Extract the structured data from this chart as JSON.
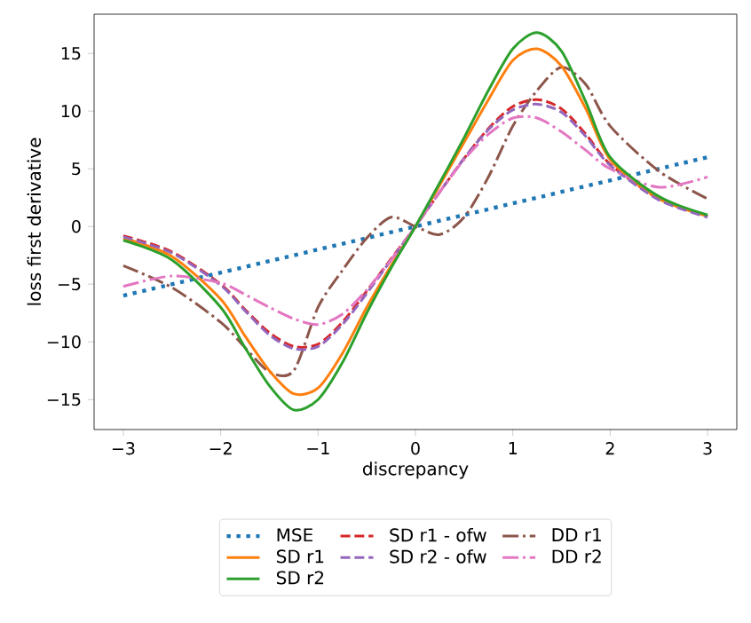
{
  "chart_data": {
    "type": "line",
    "xlabel": "discrepancy",
    "ylabel": "loss first derivative",
    "xlim": [
      -3.3,
      3.3
    ],
    "ylim": [
      -17.6,
      18.4
    ],
    "xticks": [
      {
        "value": -3,
        "label": "−3"
      },
      {
        "value": -2,
        "label": "−2"
      },
      {
        "value": -1,
        "label": "−1"
      },
      0,
      1,
      2,
      3
    ],
    "yticks": [
      {
        "value": -15,
        "label": "−15"
      },
      {
        "value": -10,
        "label": "−10"
      },
      {
        "value": -5,
        "label": "−5"
      },
      0,
      5,
      10,
      15
    ],
    "legend": "bottom",
    "grid": false,
    "x": [
      -3,
      -2.5,
      -2,
      -1.75,
      -1.5,
      -1.25,
      -1,
      -0.75,
      -0.5,
      -0.25,
      0,
      0.25,
      0.5,
      0.75,
      1,
      1.25,
      1.5,
      1.75,
      2,
      2.5,
      3
    ],
    "series": [
      {
        "name": "MSE",
        "color": "#1f77b4",
        "line_style": "dotted",
        "x": [
          -3,
          3
        ],
        "values": [
          -6,
          6
        ]
      },
      {
        "name": "SD r1",
        "color": "#ff7f0e",
        "line_style": "solid",
        "values": [
          -1.0,
          -2.6,
          -6.3,
          -9.5,
          -12.5,
          -14.5,
          -14.0,
          -11.0,
          -7.0,
          -3.4,
          0,
          3.6,
          7.3,
          11.0,
          14.4,
          15.4,
          13.9,
          10.2,
          5.8,
          2.4,
          0.9
        ]
      },
      {
        "name": "SD r2",
        "color": "#2ca02c",
        "line_style": "solid",
        "values": [
          -1.2,
          -2.9,
          -7.0,
          -10.5,
          -13.8,
          -15.9,
          -15.0,
          -11.8,
          -7.5,
          -3.6,
          0,
          3.8,
          7.7,
          11.8,
          15.4,
          16.8,
          15.2,
          10.8,
          6.0,
          2.6,
          1.0
        ]
      },
      {
        "name": "SD r1 - ofw",
        "color": "#d62728",
        "line_style": "dashed",
        "values": [
          -0.8,
          -2.2,
          -5.0,
          -7.2,
          -9.2,
          -10.4,
          -10.2,
          -8.3,
          -5.6,
          -2.8,
          0,
          3.0,
          5.9,
          8.5,
          10.4,
          11.0,
          10.2,
          8.0,
          5.4,
          2.4,
          0.9
        ]
      },
      {
        "name": "SD r2 - ofw",
        "color": "#9467bd",
        "line_style": "dashed",
        "values": [
          -0.9,
          -2.3,
          -5.1,
          -7.3,
          -9.4,
          -10.6,
          -10.4,
          -8.5,
          -5.8,
          -2.9,
          0,
          3.0,
          5.9,
          8.4,
          10.1,
          10.6,
          9.9,
          7.8,
          5.3,
          2.3,
          0.8
        ]
      },
      {
        "name": "DD r1",
        "color": "#8c564b",
        "line_style": "dashdot",
        "values": [
          -3.4,
          -5.3,
          -8.3,
          -10.5,
          -12.6,
          -12.5,
          -7.0,
          -3.8,
          -1.0,
          0.8,
          0,
          -0.7,
          0.8,
          4.3,
          8.7,
          11.8,
          13.8,
          12.3,
          8.7,
          4.8,
          2.4
        ]
      },
      {
        "name": "DD r2",
        "color": "#e377c2",
        "line_style": "dashdot",
        "values": [
          -5.2,
          -4.3,
          -4.9,
          -5.9,
          -7.0,
          -8.0,
          -8.5,
          -7.6,
          -5.5,
          -2.9,
          0,
          3.0,
          5.8,
          8.0,
          9.4,
          9.4,
          8.2,
          6.6,
          5.0,
          3.4,
          4.3
        ]
      }
    ]
  }
}
